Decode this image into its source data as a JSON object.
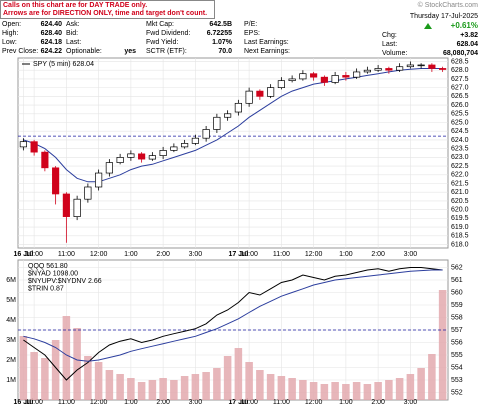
{
  "header": {
    "notice": [
      "Calls on this chart are for DAY TRADE only.",
      "Arrows are for DIRECTION ONLY, time and target don't count."
    ],
    "copyright": "© StockCharts.com",
    "date": "Thursday 17-Jul-2025",
    "pct_change": "+0.61%"
  },
  "quote": {
    "fields": [
      {
        "label": "Open:",
        "value": "624.40"
      },
      {
        "label": "High:",
        "value": "628.40"
      },
      {
        "label": "Low:",
        "value": "624.18"
      },
      {
        "label": "Prev Close:",
        "value": "624.22"
      },
      {
        "label": "Ask:"
      },
      {
        "label": "Bid:"
      },
      {
        "label": "Last:"
      },
      {
        "label": "Optionable:",
        "value": "yes"
      },
      {
        "label": "Mkt Cap:",
        "value": "642.5B"
      },
      {
        "label": "Fwd Dividend:",
        "value": "6.72255"
      },
      {
        "label": "Fwd Yield:",
        "value": "1.07%"
      },
      {
        "label": "SCTR (ETF):",
        "value": "70.0"
      },
      {
        "label": "P/E:"
      },
      {
        "label": "EPS:"
      },
      {
        "label": "Last Earnings:"
      },
      {
        "label": "Next Earnings:"
      },
      {
        "label": "Chg:",
        "value": "+3.82"
      },
      {
        "label": "Last:",
        "value": "628.04"
      },
      {
        "label": "Volume:",
        "value": "68,080,704"
      }
    ]
  },
  "chart_data": [
    {
      "type": "candlestick",
      "legend": "SPY (5 min) 628.04",
      "grid": true,
      "up_color": "#000000",
      "down_color": "#d0021b",
      "ma_color": "#2c3e9e",
      "ref_color": "#1a1aa0",
      "ref_line": 624.22,
      "categories": [
        "16 Jul",
        "10:00",
        null,
        null,
        "11:00",
        null,
        null,
        "12:00",
        null,
        null,
        "1:00",
        null,
        null,
        "2:00",
        null,
        null,
        "3:00",
        null,
        null,
        null,
        "17 Jul",
        "10:00",
        null,
        null,
        "11:00",
        null,
        null,
        "12:00",
        null,
        null,
        "1:00",
        null,
        null,
        "2:00",
        null,
        null,
        "3:00",
        null,
        null,
        null
      ],
      "open": [
        623.6,
        623.9,
        623.3,
        622.4,
        620.9,
        619.6,
        620.6,
        621.3,
        622.1,
        622.7,
        623.0,
        623.2,
        622.9,
        623.1,
        623.4,
        623.6,
        623.8,
        624.1,
        624.6,
        625.3,
        625.6,
        626.1,
        626.8,
        626.5,
        627.0,
        627.4,
        627.5,
        627.8,
        627.6,
        627.3,
        627.7,
        627.6,
        627.9,
        628.0,
        628.1,
        628.0,
        628.2,
        628.3,
        628.3,
        628.1
      ],
      "high": [
        624.1,
        624.0,
        623.4,
        622.5,
        621.0,
        620.8,
        621.5,
        622.3,
        622.9,
        623.2,
        623.4,
        623.3,
        623.3,
        623.6,
        623.8,
        624.0,
        624.3,
        624.8,
        625.5,
        625.7,
        626.3,
        627.0,
        626.9,
        627.2,
        627.6,
        627.7,
        628.0,
        627.9,
        627.7,
        627.9,
        627.9,
        628.1,
        628.2,
        628.3,
        628.2,
        628.4,
        628.5,
        628.4,
        628.4,
        628.2
      ],
      "low": [
        623.4,
        623.1,
        622.2,
        620.3,
        618.1,
        619.4,
        620.4,
        621.1,
        621.9,
        622.6,
        622.8,
        622.7,
        622.8,
        622.9,
        623.3,
        623.5,
        623.7,
        623.9,
        624.4,
        625.1,
        625.4,
        625.9,
        626.3,
        626.4,
        626.9,
        627.3,
        627.4,
        627.4,
        627.1,
        627.2,
        627.4,
        627.5,
        627.8,
        627.9,
        627.8,
        627.9,
        628.1,
        628.1,
        627.9,
        627.9
      ],
      "close": [
        623.9,
        623.3,
        622.4,
        620.9,
        619.6,
        620.6,
        621.3,
        622.1,
        622.7,
        623.0,
        623.2,
        622.9,
        623.1,
        623.4,
        623.6,
        623.8,
        624.1,
        624.6,
        625.3,
        625.5,
        626.1,
        626.8,
        626.5,
        627.0,
        627.4,
        627.5,
        627.8,
        627.6,
        627.3,
        627.7,
        627.6,
        627.9,
        628.0,
        628.1,
        628.0,
        628.2,
        628.3,
        628.3,
        628.1,
        628.04
      ],
      "ma": [
        624.0,
        623.8,
        623.5,
        623.0,
        622.3,
        621.8,
        621.6,
        621.6,
        621.8,
        622.0,
        622.3,
        622.5,
        622.6,
        622.8,
        623.0,
        623.2,
        623.4,
        623.7,
        624.0,
        624.4,
        624.8,
        625.3,
        625.7,
        626.1,
        626.5,
        626.8,
        627.0,
        627.2,
        627.3,
        627.4,
        627.5,
        627.6,
        627.7,
        627.8,
        627.9,
        628.0,
        628.05,
        628.1,
        628.1,
        628.1
      ],
      "ylim": [
        617.8,
        628.7
      ],
      "yticks": [
        {
          "value": 618,
          "label": "618.0"
        },
        618.5,
        {
          "value": 619,
          "label": "619.0"
        },
        619.5,
        {
          "value": 620,
          "label": "620.0"
        },
        620.5,
        {
          "value": 621,
          "label": "621.0"
        },
        621.5,
        {
          "value": 622,
          "label": "622.0"
        },
        622.5,
        {
          "value": 623,
          "label": "623.0"
        },
        623.5,
        {
          "value": 624,
          "label": "624.0"
        },
        624.5,
        {
          "value": 625,
          "label": "625.0"
        },
        625.5,
        {
          "value": 626,
          "label": "626.0"
        },
        626.5,
        {
          "value": 627,
          "label": "627.0"
        },
        627.5,
        {
          "value": 628,
          "label": "628.0"
        },
        628.5
      ]
    },
    {
      "type": "line",
      "legend": [
        "QQQ 561.80",
        "$NYAD 1098.00",
        "$NYUPV:$NYDNV 2.66",
        "$TRIN 0.87"
      ],
      "grid": true,
      "ref_line": 557,
      "ref_color": "#1a1aa0",
      "categories": [
        "16 Jul",
        "10:00",
        null,
        null,
        "11:00",
        null,
        null,
        "12:00",
        null,
        null,
        "1:00",
        null,
        null,
        "2:00",
        null,
        null,
        "3:00",
        null,
        null,
        null,
        "17 Jul",
        "10:00",
        null,
        null,
        "11:00",
        null,
        null,
        "12:00",
        null,
        null,
        "1:00",
        null,
        null,
        "2:00",
        null,
        null,
        "3:00",
        null,
        null,
        null
      ],
      "series": [
        {
          "name": "QQQ",
          "color": "#000000",
          "values": [
            556.2,
            555.6,
            555.0,
            554.0,
            553.0,
            553.8,
            554.4,
            555.2,
            555.8,
            556.1,
            556.3,
            556.0,
            556.2,
            556.5,
            556.7,
            556.9,
            557.1,
            557.5,
            558.2,
            558.6,
            559.2,
            560.0,
            559.8,
            560.3,
            560.8,
            561.0,
            561.4,
            561.2,
            561.0,
            561.3,
            561.4,
            561.6,
            561.8,
            561.9,
            561.7,
            561.9,
            562.0,
            562.0,
            561.9,
            561.8
          ]
        },
        {
          "color": "#2c3e9e",
          "values": [
            556.5,
            556.3,
            556.0,
            555.6,
            555.0,
            554.6,
            554.5,
            554.6,
            554.8,
            555.0,
            555.3,
            555.5,
            555.7,
            555.9,
            556.1,
            556.3,
            556.5,
            556.8,
            557.1,
            557.5,
            557.9,
            558.4,
            558.9,
            559.3,
            559.7,
            560.0,
            560.3,
            560.6,
            560.8,
            561.0,
            561.1,
            561.2,
            561.3,
            561.4,
            561.5,
            561.6,
            561.7,
            561.75,
            561.8,
            561.8
          ]
        },
        {
          "color": "#e3a9ae",
          "axis": "y2",
          "kind": "bar",
          "values": [
            3200000,
            2400000,
            2100000,
            3000000,
            4200000,
            3600000,
            2200000,
            1900000,
            1500000,
            1300000,
            1100000,
            900000,
            1000000,
            1100000,
            1000000,
            1200000,
            1300000,
            1400000,
            1600000,
            2200000,
            2600000,
            1900000,
            1500000,
            1300000,
            1200000,
            1100000,
            1000000,
            900000,
            800000,
            900000,
            800000,
            900000,
            800000,
            900000,
            1000000,
            1100000,
            1300000,
            1600000,
            2300000,
            5500000
          ]
        }
      ],
      "ylim": [
        551.4,
        562.6
      ],
      "yticks": [
        552,
        553,
        554,
        555,
        556,
        557,
        558,
        559,
        560,
        561,
        562
      ],
      "y2lim": [
        0,
        7000000
      ],
      "y2ticks": [
        {
          "value": 1000000,
          "label": "1M"
        },
        {
          "value": 2000000,
          "label": "2M"
        },
        {
          "value": 3000000,
          "label": "3M"
        },
        {
          "value": 4000000,
          "label": "4M"
        },
        {
          "value": 5000000,
          "label": "5M"
        },
        {
          "value": 6000000,
          "label": "6M"
        }
      ]
    }
  ]
}
